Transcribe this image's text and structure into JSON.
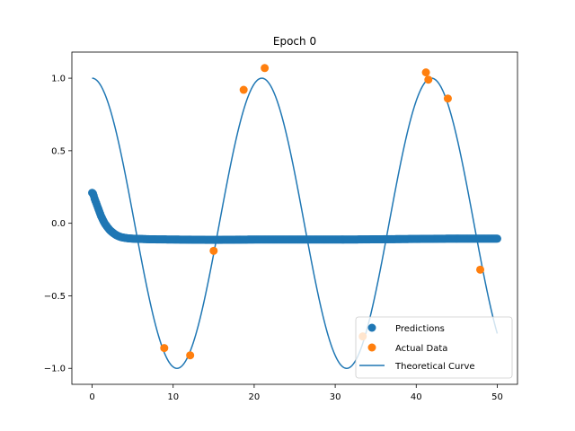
{
  "chart_data": {
    "type": "scatter",
    "title": "Epoch 0",
    "xlabel": "",
    "ylabel": "",
    "xlim": [
      -2.5,
      52.5
    ],
    "ylim": [
      -1.11,
      1.18
    ],
    "xticks": [
      0,
      10,
      20,
      30,
      40,
      50
    ],
    "xtick_labels": [
      "0",
      "10",
      "20",
      "30",
      "40",
      "50"
    ],
    "yticks": [
      -1.0,
      -0.5,
      0.0,
      0.5,
      1.0
    ],
    "ytick_labels": [
      "−1.0",
      "−0.5",
      "0.0",
      "0.5",
      "1.0"
    ],
    "grid": false,
    "legend_position": "lower-right",
    "legend": [
      "Predictions",
      "Actual Data",
      "Theoretical Curve"
    ],
    "series": [
      {
        "name": "Predictions",
        "kind": "scatter",
        "color": "#1f77b4",
        "description_points": [
          [
            0.0,
            0.21
          ],
          [
            0.1,
            0.205
          ],
          [
            0.2,
            0.19
          ],
          [
            0.3,
            0.17
          ],
          [
            0.4,
            0.155
          ],
          [
            0.5,
            0.14
          ],
          [
            0.6,
            0.125
          ],
          [
            0.7,
            0.11
          ],
          [
            0.8,
            0.095
          ],
          [
            0.9,
            0.08
          ],
          [
            1.0,
            0.065
          ],
          [
            1.1,
            0.05
          ],
          [
            1.2,
            0.038
          ],
          [
            1.3,
            0.026
          ],
          [
            1.4,
            0.015
          ],
          [
            1.5,
            0.005
          ],
          [
            1.6,
            -0.005
          ],
          [
            1.8,
            -0.02
          ],
          [
            2.0,
            -0.035
          ],
          [
            2.2,
            -0.048
          ],
          [
            2.4,
            -0.058
          ],
          [
            2.6,
            -0.067
          ],
          [
            2.8,
            -0.075
          ],
          [
            3.0,
            -0.082
          ],
          [
            3.3,
            -0.09
          ],
          [
            3.6,
            -0.096
          ],
          [
            4.0,
            -0.1
          ],
          [
            4.5,
            -0.104
          ],
          [
            5.0,
            -0.106
          ],
          [
            6.0,
            -0.108
          ],
          [
            7.0,
            -0.11
          ],
          [
            8.0,
            -0.111
          ],
          [
            10.0,
            -0.112
          ],
          [
            12.0,
            -0.113
          ],
          [
            14.0,
            -0.114
          ],
          [
            16.0,
            -0.114
          ],
          [
            18.0,
            -0.113
          ],
          [
            20.0,
            -0.112
          ],
          [
            22.0,
            -0.112
          ],
          [
            24.0,
            -0.112
          ],
          [
            26.0,
            -0.112
          ],
          [
            28.0,
            -0.112
          ],
          [
            30.0,
            -0.112
          ],
          [
            32.0,
            -0.112
          ],
          [
            34.0,
            -0.111
          ],
          [
            36.0,
            -0.11
          ],
          [
            38.0,
            -0.109
          ],
          [
            40.0,
            -0.108
          ],
          [
            42.0,
            -0.107
          ],
          [
            44.0,
            -0.106
          ],
          [
            46.0,
            -0.106
          ],
          [
            48.0,
            -0.106
          ],
          [
            50.0,
            -0.106
          ]
        ]
      },
      {
        "name": "Actual Data",
        "kind": "scatter",
        "color": "#ff7f0e",
        "x": [
          8.9,
          12.1,
          15.0,
          18.7,
          21.3,
          33.4,
          41.2,
          41.5,
          43.9,
          47.9
        ],
        "y": [
          -0.86,
          -0.91,
          -0.19,
          0.92,
          1.07,
          -0.78,
          1.04,
          0.99,
          0.86,
          -0.32
        ]
      },
      {
        "name": "Theoretical Curve",
        "kind": "line",
        "color": "#1f77b4",
        "function": "cos(0.3 * x)",
        "x_range": [
          0,
          50
        ]
      }
    ]
  }
}
